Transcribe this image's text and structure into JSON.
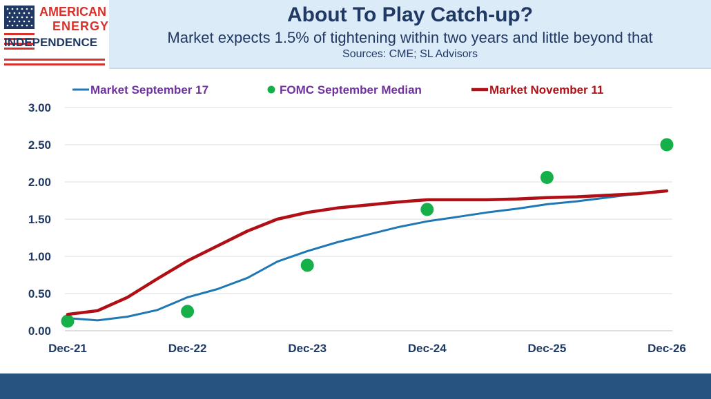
{
  "logo": {
    "line1": "AMERICAN",
    "line2": "ENERGY",
    "line3": "INDEPENDENCE"
  },
  "header": {
    "title": "About To Play Catch-up?",
    "subtitle": "Market expects 1.5% of tightening within two years and little beyond that",
    "sources": "Sources: CME; SL Advisors"
  },
  "colors": {
    "navy": "#1f3864",
    "header_bg": "#dcebf8",
    "footer": "#26537f",
    "logo_red": "#d9312b",
    "market_sep": "#1f77b4",
    "fomc": "#16b04a",
    "market_nov": "#b01015",
    "legend_purple": "#7030a0"
  },
  "chart_data": {
    "type": "line",
    "x_ticks": [
      "Dec-21",
      "Dec-22",
      "Dec-23",
      "Dec-24",
      "Dec-25",
      "Dec-26"
    ],
    "y_ticks": [
      "0.00",
      "0.50",
      "1.00",
      "1.50",
      "2.00",
      "2.50",
      "3.00"
    ],
    "ylim": [
      0,
      3.0
    ],
    "xlim": [
      0,
      60
    ],
    "grid": true,
    "legend_position": "top",
    "series": [
      {
        "name": "Market September 17",
        "kind": "line",
        "color": "#1f77b4",
        "legend_color": "#7030a0",
        "x": [
          0,
          3,
          6,
          9,
          12,
          15,
          18,
          21,
          24,
          27,
          30,
          33,
          36,
          39,
          42,
          45,
          48,
          51,
          54,
          57,
          60
        ],
        "y": [
          0.17,
          0.14,
          0.19,
          0.28,
          0.45,
          0.56,
          0.71,
          0.93,
          1.07,
          1.19,
          1.29,
          1.39,
          1.47,
          1.53,
          1.59,
          1.64,
          1.7,
          1.74,
          1.79,
          1.84,
          1.88
        ]
      },
      {
        "name": "FOMC September Median",
        "kind": "scatter",
        "color": "#16b04a",
        "legend_color": "#7030a0",
        "x": [
          0,
          12,
          24,
          36,
          48,
          60
        ],
        "y": [
          0.13,
          0.26,
          0.88,
          1.63,
          2.06,
          2.5
        ]
      },
      {
        "name": "Market November 11",
        "kind": "line",
        "color": "#b01015",
        "legend_color": "#b01015",
        "x": [
          0,
          3,
          6,
          9,
          12,
          15,
          18,
          21,
          24,
          27,
          30,
          33,
          36,
          39,
          42,
          45,
          48,
          51,
          54,
          57,
          60
        ],
        "y": [
          0.22,
          0.27,
          0.45,
          0.7,
          0.94,
          1.14,
          1.34,
          1.5,
          1.59,
          1.65,
          1.69,
          1.73,
          1.76,
          1.76,
          1.76,
          1.77,
          1.79,
          1.8,
          1.82,
          1.84,
          1.88
        ]
      }
    ]
  }
}
